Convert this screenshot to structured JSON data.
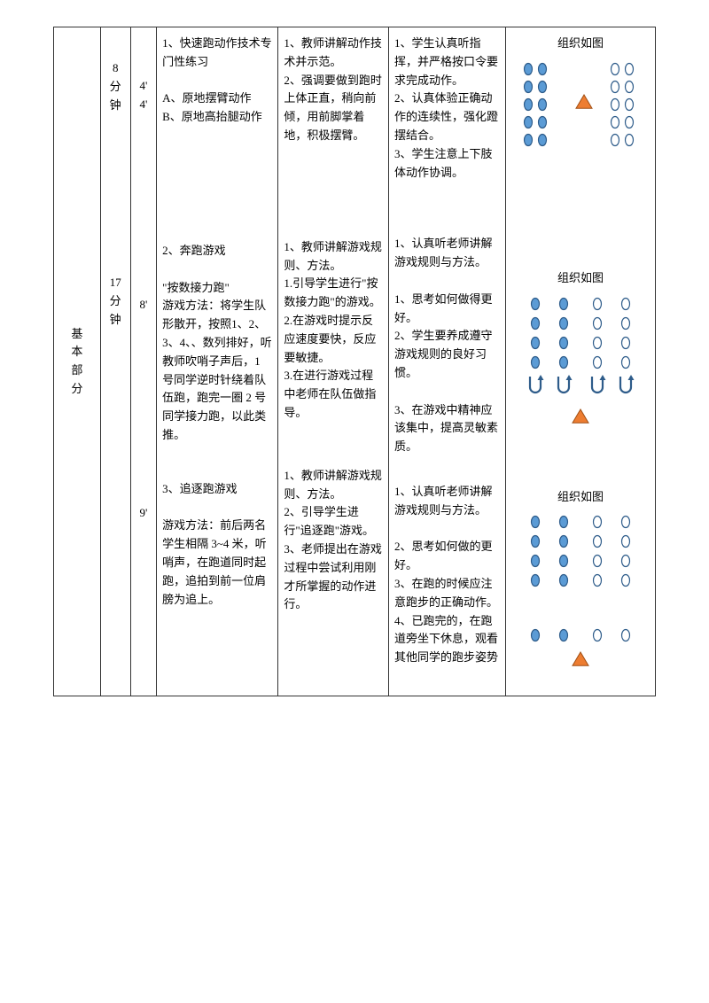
{
  "section_label": "基本部分",
  "blocks": [
    {
      "time_label": "8\n分\n钟",
      "subtimes": [
        "4'",
        "4'"
      ],
      "content": "1、快速跑动作技术专门性练习\n\nA、原地摆臂动作\nB、原地高抬腿动作",
      "teacher": "1、教师讲解动作技术并示范。\n2、强调要做到跑时上体正直，稍向前倾，用前脚掌着地，积极摆臂。",
      "student": "1、学生认真听指挥，并严格按口令要求完成动作。\n2、认真体验正确动作的连续性，强化蹬摆结合。\n3、学生注意上下肢体动作协调。",
      "diagram_title": "组织如图",
      "diagram_type": "grid_triangle"
    },
    {
      "time_label": "17\n分\n钟",
      "subtimes": [
        "8'"
      ],
      "content": "2、奔跑游戏\n\n\"按数接力跑\"\n游戏方法：将学生队形散开，按照1、2、3、4、、数列排好，听教师吹哨子声后，1 号同学逆时针绕着队伍跑，跑完一圈 2 号同学接力跑，以此类推。",
      "teacher": "1、教师讲解游戏规则、方法。\n1.引导学生进行\"按数接力跑\"的游戏。\n2.在游戏时提示反应速度要快，反应要敏捷。\n3.在进行游戏过程中老师在队伍做指导。",
      "student": "1、认真听老师讲解游戏规则与方法。\n\n1、思考如何做得更好。\n2、学生要养成遵守游戏规则的良好习惯。\n\n3、在游戏中精神应该集中，提高灵敏素质。",
      "diagram_title": "组织如图",
      "diagram_type": "grid_arrows"
    },
    {
      "time_label": "",
      "subtimes": [
        "9'"
      ],
      "content": "3、追逐跑游戏\n\n游戏方法：前后两名学生相隔 3~4 米，听哨声，在跑道同时起跑，追拍到前一位肩膀为追上。",
      "teacher": "1、教师讲解游戏规则、方法。\n2、引导学生进行\"追逐跑\"游戏。\n3、老师提出在游戏过程中尝试利用刚才所掌握的动作进行。",
      "student": "1、认真听老师讲解游戏规则与方法。\n\n2、思考如何做的更好。\n3、在跑的时候应注意跑步的正确动作。\n4、已跑完的，在跑道旁坐下休息，观看其他同学的跑步姿势",
      "diagram_title": "组织如图",
      "diagram_type": "grid_split"
    }
  ],
  "colors": {
    "oval_fill": "#5b9bd5",
    "oval_empty": "#ffffff",
    "oval_stroke": "#2e5c8a",
    "triangle_fill": "#ed7d31",
    "triangle_stroke": "#a04f14",
    "arrow_stroke": "#2e5c8a"
  }
}
